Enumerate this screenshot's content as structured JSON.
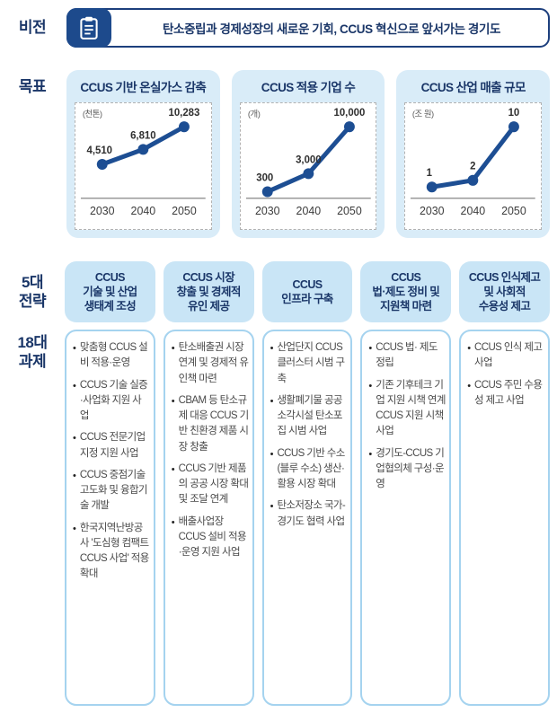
{
  "colors": {
    "navy": "#1a3668",
    "icon_bg": "#1d4a8c",
    "line_blue": "#1d4e93",
    "card_bg": "#d9ecf8",
    "header_bg": "#c9e5f6",
    "task_border": "#a5d3ef"
  },
  "vision": {
    "label": "비전",
    "icon": "clipboard-icon",
    "text": "탄소중립과 경제성장의 새로운 기회, CCUS 혁신으로 앞서가는 경기도"
  },
  "goals": {
    "label": "목표"
  },
  "chart_data": [
    {
      "type": "line",
      "title": "CCUS 기반 온실가스 감축",
      "unit": "(천톤)",
      "x": [
        "2030",
        "2040",
        "2050"
      ],
      "values": [
        4510,
        6810,
        10283
      ],
      "value_labels": [
        "4,510",
        "6,810",
        "10,283"
      ],
      "ylim": [
        0,
        10283
      ],
      "line_color": "#1d4e93"
    },
    {
      "type": "line",
      "title": "CCUS 적용 기업 수",
      "unit": "(개)",
      "x": [
        "2030",
        "2040",
        "2050"
      ],
      "values": [
        300,
        3000,
        10000
      ],
      "value_labels": [
        "300",
        "3,000",
        "10,000"
      ],
      "ylim": [
        0,
        10000
      ],
      "line_color": "#1d4e93"
    },
    {
      "type": "line",
      "title": "CCUS 산업 매출 규모",
      "unit": "(조 원)",
      "x": [
        "2030",
        "2040",
        "2050"
      ],
      "values": [
        1,
        2,
        10
      ],
      "value_labels": [
        "1",
        "2",
        "10"
      ],
      "ylim": [
        0,
        10
      ],
      "line_color": "#1d4e93"
    }
  ],
  "strategies": {
    "section_label": "5대\n전략",
    "tasks_label": "18대\n과제",
    "columns": [
      {
        "header": "CCUS\n기술 및 산업\n생태계 조성",
        "tasks": [
          "맞춤형 CCUS 설비 적용·운영",
          "CCUS 기술 실증·사업화 지원 사업",
          "CCUS 전문기업 지정 지원 사업",
          "CCUS 중점기술 고도화 및 융합기술 개발",
          "한국지역난방공사 '도심형 컴팩트 CCUS 사업' 적용 확대"
        ]
      },
      {
        "header": "CCUS 시장\n창출 및 경제적\n유인 제공",
        "tasks": [
          "탄소배출권 시장 연계 및 경제적 유인책 마련",
          "CBAM 등 탄소규제 대응 CCUS 기반 친환경 제품 시장 창출",
          "CCUS 기반 제품의 공공 시장 확대 및 조달 연계",
          "배출사업장 CCUS 설비 적용·운영 지원 사업"
        ]
      },
      {
        "header": "CCUS\n인프라 구축",
        "tasks": [
          "산업단지 CCUS 클러스터 시범 구축",
          "생활폐기물 공공소각시설 탄소포집 시범 사업",
          "CCUS 기반 수소(블루 수소) 생산·활용 시장 확대",
          "탄소저장소 국가-경기도 협력 사업"
        ]
      },
      {
        "header": "CCUS\n법·제도 정비 및\n지원책 마련",
        "tasks": [
          "CCUS 법· 제도 정립",
          "기존 기후테크 기업 지원 시책 연계 CCUS 지원 시책 사업",
          "경기도-CCUS 기업협의체 구성·운영"
        ]
      },
      {
        "header": "CCUS 인식제고\n및 사회적\n수용성 제고",
        "tasks": [
          "CCUS 인식 제고 사업",
          "CCUS 주민 수용성 제고 사업"
        ]
      }
    ]
  }
}
